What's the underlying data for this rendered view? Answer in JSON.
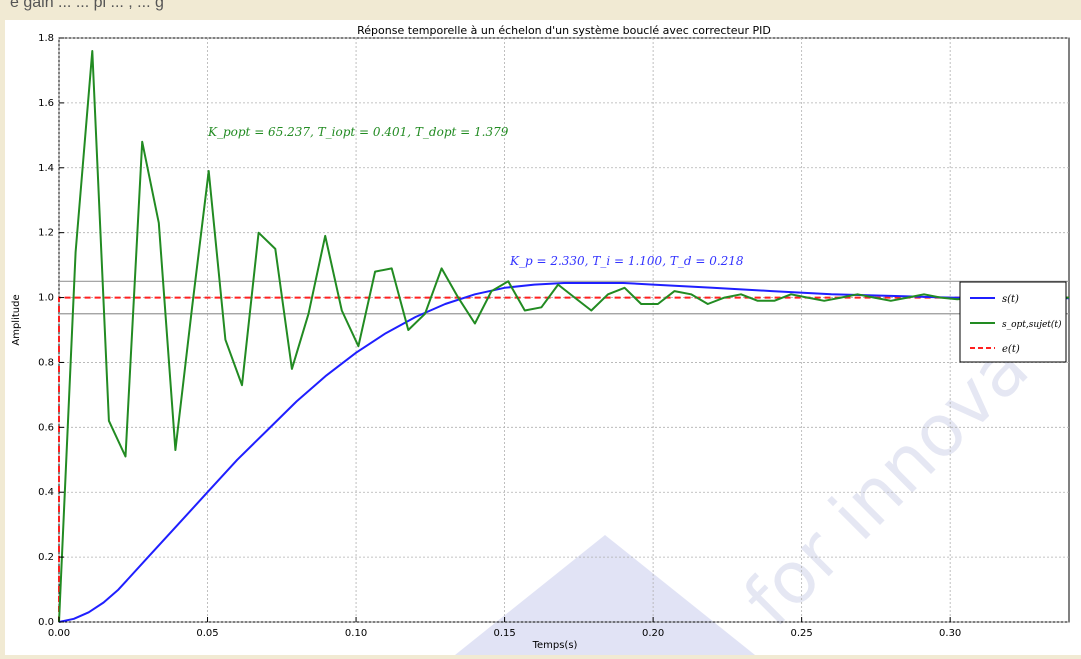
{
  "top_fragment": "ê gain ... ... pi ... , ... g",
  "chart_data": {
    "type": "line",
    "title": "Réponse temporelle à un échelon d'un système bouclé avec correcteur PID",
    "xlabel": "Temps(s)",
    "ylabel": "Amplitude",
    "xlim": [
      0.0,
      0.34
    ],
    "ylim": [
      0.0,
      1.8
    ],
    "xticks": [
      "0.00",
      "0.05",
      "0.10",
      "0.15",
      "0.20",
      "0.25",
      "0.30"
    ],
    "xtick_values": [
      0.0,
      0.05,
      0.1,
      0.15,
      0.2,
      0.25,
      0.3
    ],
    "yticks": [
      "0.0",
      "0.2",
      "0.4",
      "0.6",
      "0.8",
      "1.0",
      "1.2",
      "1.4",
      "1.6",
      "1.8"
    ],
    "ytick_values": [
      0.0,
      0.2,
      0.4,
      0.6,
      0.8,
      1.0,
      1.2,
      1.4,
      1.6,
      1.8
    ],
    "grid": true,
    "legend_position": "right",
    "reference_lines": [
      {
        "y": 1.05,
        "color": "#999999"
      },
      {
        "y": 0.95,
        "color": "#999999"
      }
    ],
    "annotations": [
      {
        "text": "K_popt = 65.237, T_iopt = 0.401, T_dopt = 1.379",
        "color": "#228b22",
        "x": 0.049,
        "y": 1.5
      },
      {
        "text": "K_p = 2.330, T_i = 1.100, T_d = 0.218",
        "color": "#3333ff",
        "x": 0.151,
        "y": 1.1
      }
    ],
    "series": [
      {
        "name": "s(t)",
        "color": "#1f1fff",
        "style": "solid",
        "x": [
          0.0,
          0.005,
          0.01,
          0.015,
          0.02,
          0.03,
          0.04,
          0.05,
          0.06,
          0.07,
          0.08,
          0.09,
          0.1,
          0.11,
          0.12,
          0.13,
          0.14,
          0.15,
          0.16,
          0.17,
          0.18,
          0.19,
          0.2,
          0.22,
          0.24,
          0.26,
          0.28,
          0.3,
          0.32,
          0.34
        ],
        "values": [
          0.0,
          0.01,
          0.03,
          0.06,
          0.1,
          0.2,
          0.3,
          0.4,
          0.5,
          0.59,
          0.68,
          0.76,
          0.83,
          0.89,
          0.94,
          0.98,
          1.01,
          1.03,
          1.04,
          1.045,
          1.045,
          1.045,
          1.04,
          1.03,
          1.02,
          1.01,
          1.005,
          1.0,
          0.998,
          0.998
        ]
      },
      {
        "name": "s_opt,sujet(t)",
        "color": "#228b22",
        "style": "solid",
        "x": [
          0.0,
          0.0056,
          0.0112,
          0.0168,
          0.0224,
          0.028,
          0.0336,
          0.0392,
          0.0448,
          0.0504,
          0.056,
          0.0616,
          0.0672,
          0.0728,
          0.0784,
          0.084,
          0.0896,
          0.0952,
          0.1008,
          0.1064,
          0.112,
          0.1176,
          0.1232,
          0.1288,
          0.1344,
          0.14,
          0.1456,
          0.1512,
          0.1568,
          0.1624,
          0.168,
          0.1736,
          0.1792,
          0.1848,
          0.1904,
          0.196,
          0.2016,
          0.2072,
          0.2128,
          0.2184,
          0.224,
          0.2296,
          0.2352,
          0.2408,
          0.2464,
          0.252,
          0.2576,
          0.2632,
          0.2688,
          0.2744,
          0.28,
          0.2856,
          0.2912,
          0.2968,
          0.3024,
          0.308,
          0.3136,
          0.3192,
          0.3248,
          0.3304,
          0.336,
          0.34
        ],
        "values": [
          0.0,
          1.14,
          1.76,
          0.62,
          0.51,
          1.48,
          1.23,
          0.53,
          0.97,
          1.39,
          0.87,
          0.73,
          1.2,
          1.15,
          0.78,
          0.95,
          1.19,
          0.96,
          0.85,
          1.08,
          1.09,
          0.9,
          0.95,
          1.09,
          1.0,
          0.92,
          1.02,
          1.05,
          0.96,
          0.97,
          1.04,
          1.0,
          0.96,
          1.01,
          1.03,
          0.98,
          0.98,
          1.02,
          1.01,
          0.98,
          1.0,
          1.01,
          0.99,
          0.99,
          1.01,
          1.0,
          0.99,
          1.0,
          1.01,
          1.0,
          0.99,
          1.0,
          1.01,
          1.0,
          0.995,
          1.0,
          1.0,
          0.995,
          1.0,
          1.0,
          1.0,
          1.0
        ]
      },
      {
        "name": "e(t)",
        "color": "#ff2020",
        "style": "dashed",
        "x": [
          0.0,
          0.0,
          0.34
        ],
        "values": [
          0.0,
          1.0,
          1.0
        ]
      }
    ]
  },
  "legend": {
    "entries": [
      {
        "label": "s(t)",
        "color": "#1f1fff",
        "style": "solid"
      },
      {
        "label": "s_opt,sujet(t)",
        "color": "#228b22",
        "style": "solid"
      },
      {
        "label": "e(t)",
        "color": "#ff2020",
        "style": "dashed"
      }
    ]
  },
  "watermark": {
    "text": "for innova",
    "color": "#2f3f9f"
  }
}
